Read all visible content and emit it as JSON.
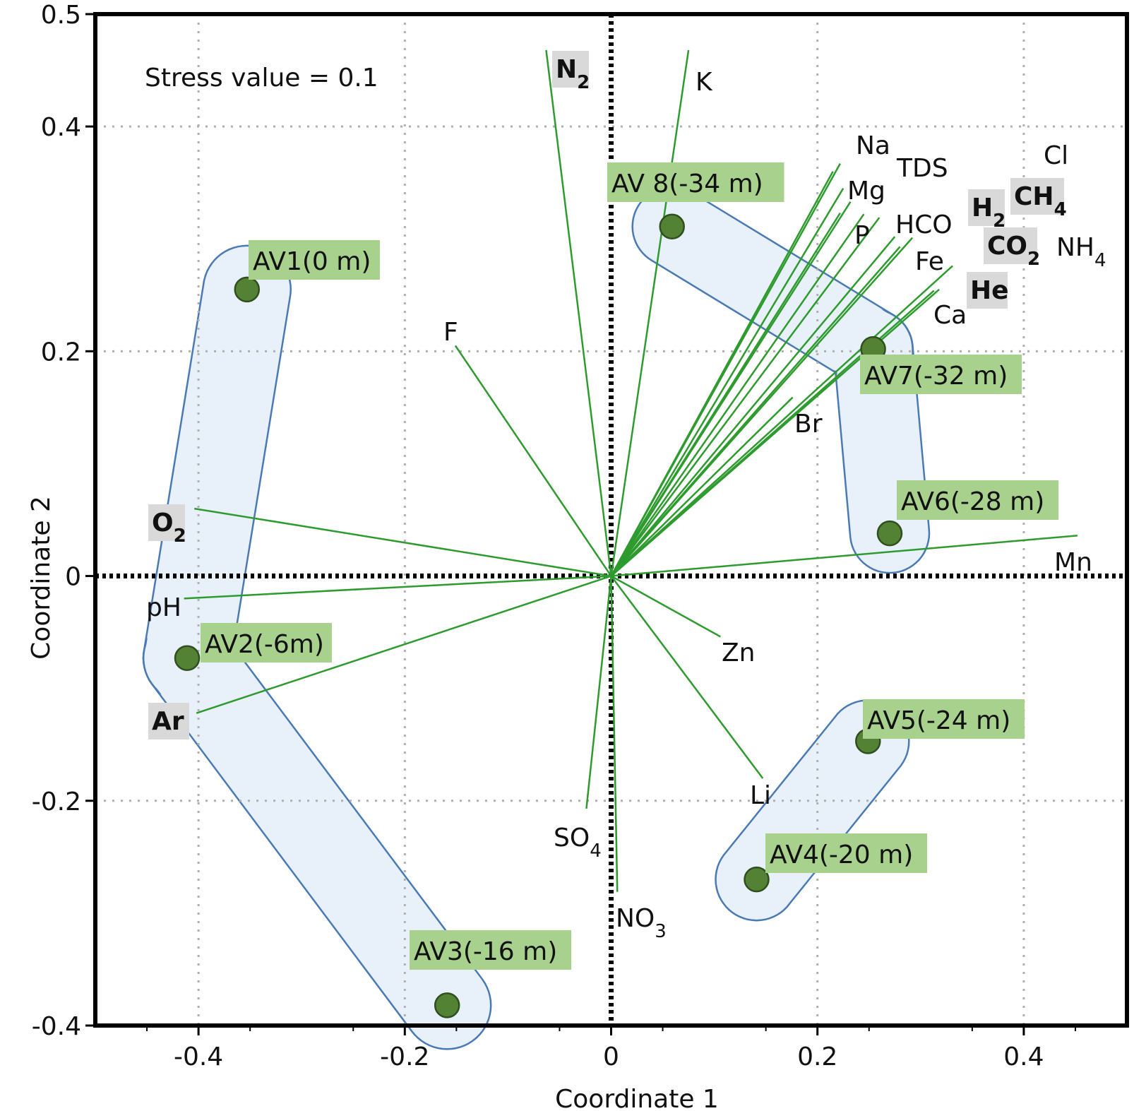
{
  "chart_data": {
    "type": "scatter",
    "title": "",
    "xlabel": "Coordinate 1",
    "ylabel": "Coordinate 2",
    "xlim": [
      -0.5,
      0.5
    ],
    "ylim": [
      -0.4,
      0.5
    ],
    "x_ticks": [
      -0.4,
      -0.2,
      0,
      0.2,
      0.4
    ],
    "x_tick_labels": [
      "-0.4",
      "-0.2",
      "0",
      "0.2",
      "0.4"
    ],
    "y_ticks": [
      -0.4,
      -0.2,
      0,
      0.2,
      0.4,
      0.5
    ],
    "y_tick_labels": [
      "-0.4",
      "-0.2",
      "0",
      "0.2",
      "0.4",
      "0.5"
    ],
    "grid": true,
    "annotation": "Stress value = 0.1",
    "point_color": "#548235",
    "label_bg_color": "#a9d18e",
    "vector_color": "#2e9b2e",
    "hull_fill": "#e8f0fa",
    "hull_stroke": "#4a7ab5",
    "gas_bg_color": "#d9d9d9",
    "samples": [
      {
        "label": "AV1(0 m)",
        "x": -0.353,
        "y": 0.255
      },
      {
        "label": "AV2(-6m)",
        "x": -0.411,
        "y": -0.073
      },
      {
        "label": "AV3(-16 m)",
        "x": -0.159,
        "y": -0.382
      },
      {
        "label": "AV4(-20 m)",
        "x": 0.141,
        "y": -0.27
      },
      {
        "label": "AV5(-24 m)",
        "x": 0.249,
        "y": -0.147
      },
      {
        "label": "AV6(-28 m)",
        "x": 0.27,
        "y": 0.038
      },
      {
        "label": "AV7(-32 m)",
        "x": 0.254,
        "y": 0.202
      },
      {
        "label": "AV 8(-34 m)",
        "x": 0.059,
        "y": 0.311
      }
    ],
    "vectors": [
      {
        "label": "N",
        "sub": "2",
        "gas": true,
        "x": -0.063,
        "y": 0.468
      },
      {
        "label": "K",
        "sub": "",
        "gas": false,
        "x": 0.075,
        "y": 0.468
      },
      {
        "label": "Na",
        "sub": "",
        "gas": false,
        "x": 0.222,
        "y": 0.367
      },
      {
        "label": "TDS",
        "sub": "",
        "gas": false,
        "x": 0.215,
        "y": 0.36
      },
      {
        "label": "Cl",
        "sub": "",
        "gas": false,
        "x": 0.225,
        "y": 0.345
      },
      {
        "label": "Mg",
        "sub": "",
        "gas": false,
        "x": 0.232,
        "y": 0.333
      },
      {
        "label": "H",
        "sub": "2",
        "gas": true,
        "x": 0.222,
        "y": 0.323
      },
      {
        "label": "CH",
        "sub": "4",
        "gas": true,
        "x": 0.245,
        "y": 0.322
      },
      {
        "label": "P",
        "sub": "",
        "gas": false,
        "x": 0.26,
        "y": 0.319
      },
      {
        "label": "HCO",
        "sub": "",
        "gas": false,
        "x": 0.275,
        "y": 0.302
      },
      {
        "label": "CO",
        "sub": "2",
        "gas": true,
        "x": 0.28,
        "y": 0.293
      },
      {
        "label": "NH",
        "sub": "4",
        "gas": false,
        "x": 0.292,
        "y": 0.301
      },
      {
        "label": "Fe",
        "sub": "",
        "gas": false,
        "x": 0.331,
        "y": 0.276
      },
      {
        "label": "He",
        "sub": "",
        "gas": true,
        "x": 0.318,
        "y": 0.255
      },
      {
        "label": "Ca",
        "sub": "",
        "gas": false,
        "x": 0.313,
        "y": 0.254
      },
      {
        "label": "Br",
        "sub": "",
        "gas": false,
        "x": 0.176,
        "y": 0.159
      },
      {
        "label": "F",
        "sub": "",
        "gas": false,
        "x": -0.151,
        "y": 0.205
      },
      {
        "label": "O",
        "sub": "2",
        "gas": true,
        "x": -0.404,
        "y": 0.06
      },
      {
        "label": "Mn",
        "sub": "",
        "gas": false,
        "x": 0.452,
        "y": 0.036
      },
      {
        "label": "pH",
        "sub": "",
        "gas": false,
        "x": -0.414,
        "y": -0.02
      },
      {
        "label": "Ar",
        "sub": "",
        "gas": true,
        "x": -0.402,
        "y": -0.122
      },
      {
        "label": "Zn",
        "sub": "",
        "gas": false,
        "x": 0.106,
        "y": -0.054
      },
      {
        "label": "Li",
        "sub": "",
        "gas": false,
        "x": 0.147,
        "y": -0.18
      },
      {
        "label": "SO",
        "sub": "4",
        "gas": false,
        "x": -0.024,
        "y": -0.207
      },
      {
        "label": "NO",
        "sub": "3",
        "gas": false,
        "x": 0.006,
        "y": -0.281
      }
    ],
    "groups": [
      {
        "members": [
          "AV1(0 m)",
          "AV2(-6m)",
          "AV3(-16 m)"
        ]
      },
      {
        "members": [
          "AV6(-28 m)",
          "AV7(-32 m)",
          "AV 8(-34 m)"
        ]
      },
      {
        "members": [
          "AV4(-20 m)",
          "AV5(-24 m)"
        ]
      }
    ]
  }
}
